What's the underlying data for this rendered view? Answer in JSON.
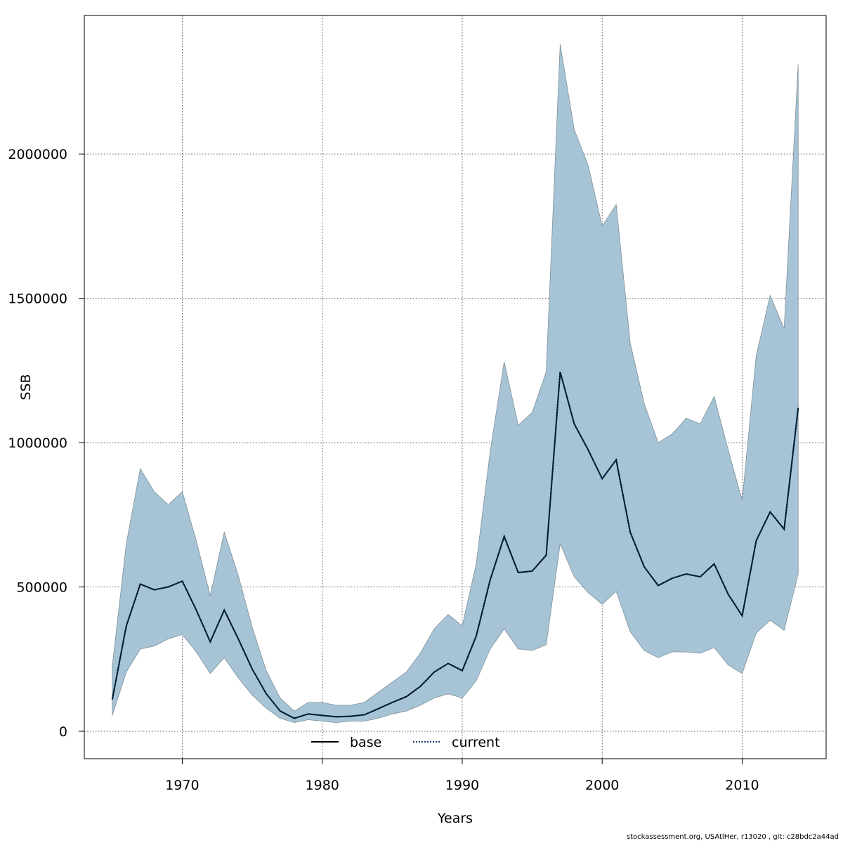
{
  "chart_data": {
    "type": "area",
    "xlabel": "Years",
    "ylabel": "SSB",
    "xlim": [
      1963,
      2016
    ],
    "ylim": [
      -95000,
      2480000
    ],
    "xticks": [
      1970,
      1980,
      1990,
      2000,
      2010
    ],
    "yticks": [
      0,
      500000,
      1000000,
      1500000,
      2000000
    ],
    "xtick_labels": [
      "1970",
      "1980",
      "1990",
      "2000",
      "2010"
    ],
    "ytick_labels": [
      "0",
      "500000",
      "1000000",
      "1500000",
      "2000000"
    ],
    "grid": true,
    "legend_position": "bottom-center",
    "colors": {
      "band": "#a6c4d5",
      "band_edge": "#7f8f99",
      "current": "#003a6a",
      "base": "#000000",
      "grid": "#555555"
    },
    "x": [
      1965,
      1966,
      1967,
      1968,
      1969,
      1970,
      1971,
      1972,
      1973,
      1974,
      1975,
      1976,
      1977,
      1978,
      1979,
      1980,
      1981,
      1982,
      1983,
      1984,
      1985,
      1986,
      1987,
      1988,
      1989,
      1990,
      1991,
      1992,
      1993,
      1994,
      1995,
      1996,
      1997,
      1998,
      1999,
      2000,
      2001,
      2002,
      2003,
      2004,
      2005,
      2006,
      2007,
      2008,
      2009,
      2010,
      2011,
      2012,
      2013,
      2014
    ],
    "band_upper": [
      225000,
      650000,
      910000,
      830000,
      785000,
      830000,
      660000,
      470000,
      690000,
      540000,
      360000,
      210000,
      115000,
      70000,
      100000,
      100000,
      90000,
      90000,
      100000,
      135000,
      170000,
      205000,
      270000,
      355000,
      405000,
      365000,
      580000,
      970000,
      1280000,
      1060000,
      1105000,
      1245000,
      2380000,
      2085000,
      1960000,
      1750000,
      1825000,
      1345000,
      1135000,
      1000000,
      1030000,
      1085000,
      1065000,
      1160000,
      975000,
      800000,
      1300000,
      1510000,
      1395000,
      2310000
    ],
    "band_lower": [
      55000,
      205000,
      285000,
      295000,
      320000,
      335000,
      275000,
      200000,
      255000,
      185000,
      125000,
      80000,
      45000,
      30000,
      40000,
      35000,
      30000,
      35000,
      35000,
      45000,
      60000,
      70000,
      90000,
      115000,
      130000,
      115000,
      175000,
      285000,
      355000,
      285000,
      280000,
      300000,
      650000,
      535000,
      480000,
      440000,
      485000,
      345000,
      280000,
      255000,
      275000,
      275000,
      270000,
      290000,
      230000,
      200000,
      340000,
      385000,
      350000,
      545000
    ],
    "series": [
      {
        "name": "base",
        "values": [
          110000,
          365000,
          510000,
          490000,
          500000,
          520000,
          420000,
          310000,
          420000,
          320000,
          215000,
          130000,
          70000,
          45000,
          60000,
          55000,
          50000,
          52000,
          57000,
          78000,
          100000,
          120000,
          155000,
          205000,
          235000,
          210000,
          330000,
          525000,
          675000,
          550000,
          555000,
          610000,
          1245000,
          1065000,
          975000,
          875000,
          940000,
          690000,
          570000,
          505000,
          530000,
          545000,
          535000,
          580000,
          475000,
          400000,
          660000,
          760000,
          700000,
          1120000
        ]
      },
      {
        "name": "current",
        "values": [
          110000,
          365000,
          510000,
          490000,
          500000,
          520000,
          420000,
          310000,
          420000,
          320000,
          215000,
          130000,
          70000,
          45000,
          60000,
          55000,
          50000,
          52000,
          57000,
          78000,
          100000,
          120000,
          155000,
          205000,
          235000,
          210000,
          330000,
          525000,
          675000,
          550000,
          555000,
          610000,
          1245000,
          1065000,
          975000,
          875000,
          940000,
          690000,
          570000,
          505000,
          530000,
          545000,
          535000,
          580000,
          475000,
          400000,
          660000,
          760000,
          700000,
          1120000
        ]
      }
    ]
  },
  "footer": "stockassessment.org, USAtlHer, r13020 , git: c28bdc2a44ad"
}
